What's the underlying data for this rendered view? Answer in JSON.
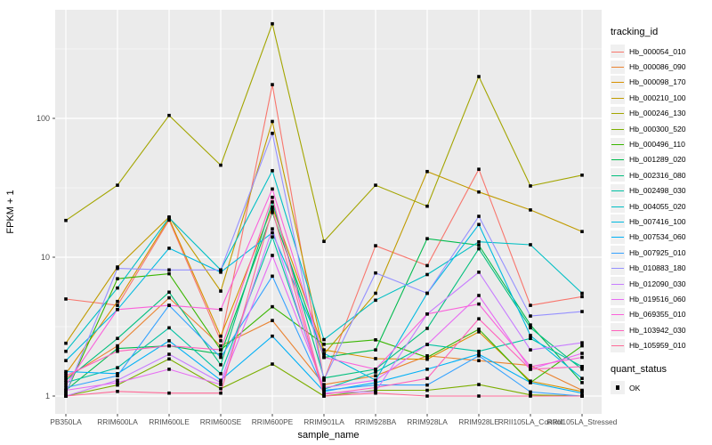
{
  "chart_data": {
    "type": "line",
    "xlabel": "sample_name",
    "ylabel": "FPKM + 1",
    "x_categories": [
      "PB350LA",
      "RRIM600LA",
      "RRIM600LE",
      "RRIM600SE",
      "RRIM600PE",
      "RRIM901LA",
      "RRIM928BA",
      "RRIM928LA",
      "RRIM928LE",
      "RRII105LA_Control",
      "RRII105LA_Stressed"
    ],
    "y_scale": "log10",
    "y_ticks": [
      1,
      10,
      100
    ],
    "y_tick_labels": [
      "1",
      "10",
      "100"
    ],
    "y_minor_ticks": [
      3.1623,
      31.623,
      316.23
    ],
    "ylim": [
      0.74,
      605
    ],
    "grid": "on",
    "panel_bg": "#EBEBEB",
    "grid_color": "#FFFFFF",
    "axis_text_color": "#4D4D4D",
    "axis_title_color": "#000000",
    "point_marker": "filled-square",
    "point_color": "#000000",
    "legend_title": "tracking_id",
    "legend_position": "right",
    "quant_status": {
      "title": "quant_status",
      "items": [
        {
          "label": "OK",
          "marker": "black-square"
        }
      ]
    },
    "series": [
      {
        "name": "Hb_000054_010",
        "color": "#F8766D",
        "values": [
          5.0,
          4.5,
          18.5,
          2.5,
          175,
          1.3,
          12.1,
          8.7,
          43,
          4.5,
          5.2
        ]
      },
      {
        "name": "Hb_000086_090",
        "color": "#EA8331",
        "values": [
          1.35,
          2.3,
          5.1,
          2.3,
          3.5,
          1.21,
          1.4,
          1.95,
          1.8,
          1.66,
          1.1
        ]
      },
      {
        "name": "Hb_000098_170",
        "color": "#D89000",
        "values": [
          1.45,
          4.8,
          19.0,
          2.7,
          23,
          2.15,
          1.86,
          1.84,
          2.9,
          1.28,
          1.08
        ]
      },
      {
        "name": "Hb_000210_100",
        "color": "#C09B00",
        "values": [
          2.4,
          8.5,
          19.5,
          5.7,
          95,
          2.0,
          5.5,
          41.4,
          29.5,
          21.9,
          15.3
        ]
      },
      {
        "name": "Hb_000246_130",
        "color": "#A3A500",
        "values": [
          18.4,
          33,
          105,
          46,
          480,
          13,
          33,
          23.3,
          200,
          32.6,
          39
        ]
      },
      {
        "name": "Hb_000300_520",
        "color": "#7CAE00",
        "values": [
          1.0,
          1.2,
          1.85,
          1.13,
          1.7,
          1.0,
          1.1,
          1.1,
          1.21,
          1.02,
          1.0
        ]
      },
      {
        "name": "Hb_000496_110",
        "color": "#39B600",
        "values": [
          1.05,
          7.0,
          7.6,
          2.15,
          4.4,
          2.36,
          2.54,
          1.9,
          3.03,
          1.25,
          2.3
        ]
      },
      {
        "name": "Hb_001289_020",
        "color": "#00BB4E",
        "values": [
          1.1,
          2.2,
          2.3,
          2.0,
          21,
          1.9,
          2.15,
          13.6,
          12.2,
          3.25,
          1.25
        ]
      },
      {
        "name": "Hb_002316_080",
        "color": "#00BF7D",
        "values": [
          1.3,
          2.6,
          5.6,
          1.68,
          25,
          1.35,
          1.56,
          3.07,
          11.5,
          3.1,
          1.56
        ]
      },
      {
        "name": "Hb_002498_030",
        "color": "#00C1A3",
        "values": [
          1.25,
          1.6,
          3.1,
          1.45,
          14,
          1.12,
          1.49,
          2.35,
          2.1,
          2.6,
          1.63
        ]
      },
      {
        "name": "Hb_004055_020",
        "color": "#00BFC4",
        "values": [
          2.1,
          6.0,
          19.2,
          8.1,
          42,
          2.55,
          4.9,
          7.5,
          12.9,
          12.3,
          5.5
        ]
      },
      {
        "name": "Hb_007416_100",
        "color": "#00BAE0",
        "values": [
          1.8,
          4.2,
          11.6,
          7.8,
          15,
          2.03,
          1.3,
          5.5,
          17.2,
          2.73,
          1.34
        ]
      },
      {
        "name": "Hb_007534_060",
        "color": "#00B0F6",
        "values": [
          1.5,
          1.45,
          2.5,
          1.3,
          2.7,
          1.08,
          1.25,
          1.56,
          2.0,
          1.25,
          1.05
        ]
      },
      {
        "name": "Hb_007925_010",
        "color": "#35A2FF",
        "values": [
          1.15,
          1.4,
          4.5,
          1.9,
          7.3,
          1.1,
          1.2,
          1.2,
          1.95,
          1.07,
          1.0
        ]
      },
      {
        "name": "Hb_010883_180",
        "color": "#9590FF",
        "values": [
          1.05,
          8.3,
          8.1,
          8.1,
          78,
          1.31,
          7.7,
          5.5,
          19.7,
          3.77,
          4.06
        ]
      },
      {
        "name": "Hb_012090_030",
        "color": "#C77CFF",
        "values": [
          1.0,
          1.3,
          2.0,
          1.25,
          16,
          1.05,
          1.08,
          3.9,
          7.8,
          2.15,
          2.42
        ]
      },
      {
        "name": "Hb_019516_060",
        "color": "#E76BF3",
        "values": [
          1.1,
          1.25,
          1.56,
          1.21,
          10.3,
          1.15,
          1.3,
          2.35,
          5.3,
          1.56,
          2.03
        ]
      },
      {
        "name": "Hb_069355_010",
        "color": "#FA62DB",
        "values": [
          1.2,
          4.2,
          4.5,
          4.2,
          31,
          1.9,
          1.56,
          3.9,
          4.6,
          1.63,
          1.9
        ]
      },
      {
        "name": "Hb_103942_030",
        "color": "#FF62BC",
        "values": [
          1.4,
          2.1,
          2.3,
          2.15,
          27,
          1.03,
          1.15,
          1.34,
          3.6,
          1.56,
          1.63
        ]
      },
      {
        "name": "Hb_105959_010",
        "color": "#FF6A98",
        "values": [
          1.0,
          1.08,
          1.05,
          1.05,
          22,
          1.0,
          1.05,
          1.0,
          1.0,
          1.0,
          1.0
        ]
      }
    ]
  }
}
